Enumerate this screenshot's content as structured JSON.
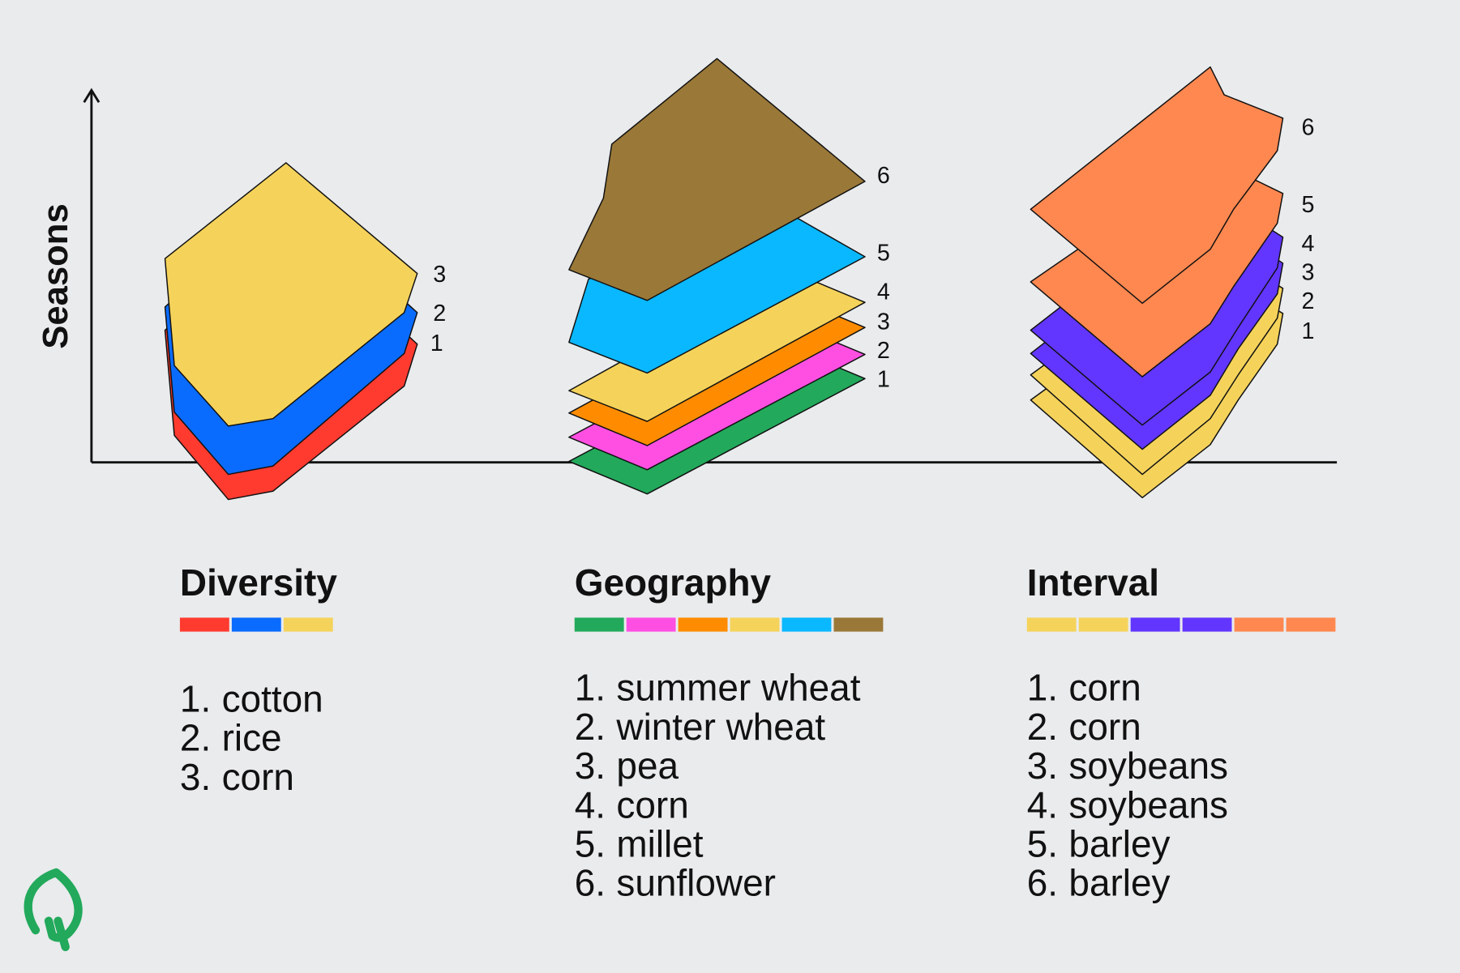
{
  "axis_label": "Seasons",
  "groups": [
    {
      "title": "Diversity",
      "colors": [
        "#ff3b30",
        "#0a6cff",
        "#f5d35b"
      ],
      "layers": [
        "1",
        "2",
        "3"
      ],
      "list": [
        {
          "number": "1.",
          "name": "cotton"
        },
        {
          "number": "2.",
          "name": "rice"
        },
        {
          "number": "3.",
          "name": "corn"
        }
      ]
    },
    {
      "title": "Geography",
      "colors": [
        "#22a95b",
        "#ff4fe3",
        "#ff8c00",
        "#f5d35b",
        "#0ab8ff",
        "#9a7838"
      ],
      "layers": [
        "1",
        "2",
        "3",
        "4",
        "5",
        "6"
      ],
      "list": [
        {
          "number": "1.",
          "name": "summer wheat"
        },
        {
          "number": "2.",
          "name": "winter wheat"
        },
        {
          "number": "3.",
          "name": "pea"
        },
        {
          "number": "4.",
          "name": "corn"
        },
        {
          "number": "5.",
          "name": "millet"
        },
        {
          "number": "6.",
          "name": "sunflower"
        }
      ]
    },
    {
      "title": "Interval",
      "colors": [
        "#f5d35b",
        "#f5d35b",
        "#6236ff",
        "#6236ff",
        "#ff8850",
        "#ff8850"
      ],
      "layers": [
        "1",
        "2",
        "3",
        "4",
        "5",
        "6"
      ],
      "list": [
        {
          "number": "1.",
          "name": "corn"
        },
        {
          "number": "2.",
          "name": "corn"
        },
        {
          "number": "3.",
          "name": "soybeans"
        },
        {
          "number": "4.",
          "name": "soybeans"
        },
        {
          "number": "5.",
          "name": "barley"
        },
        {
          "number": "6.",
          "name": "barley"
        }
      ]
    }
  ]
}
